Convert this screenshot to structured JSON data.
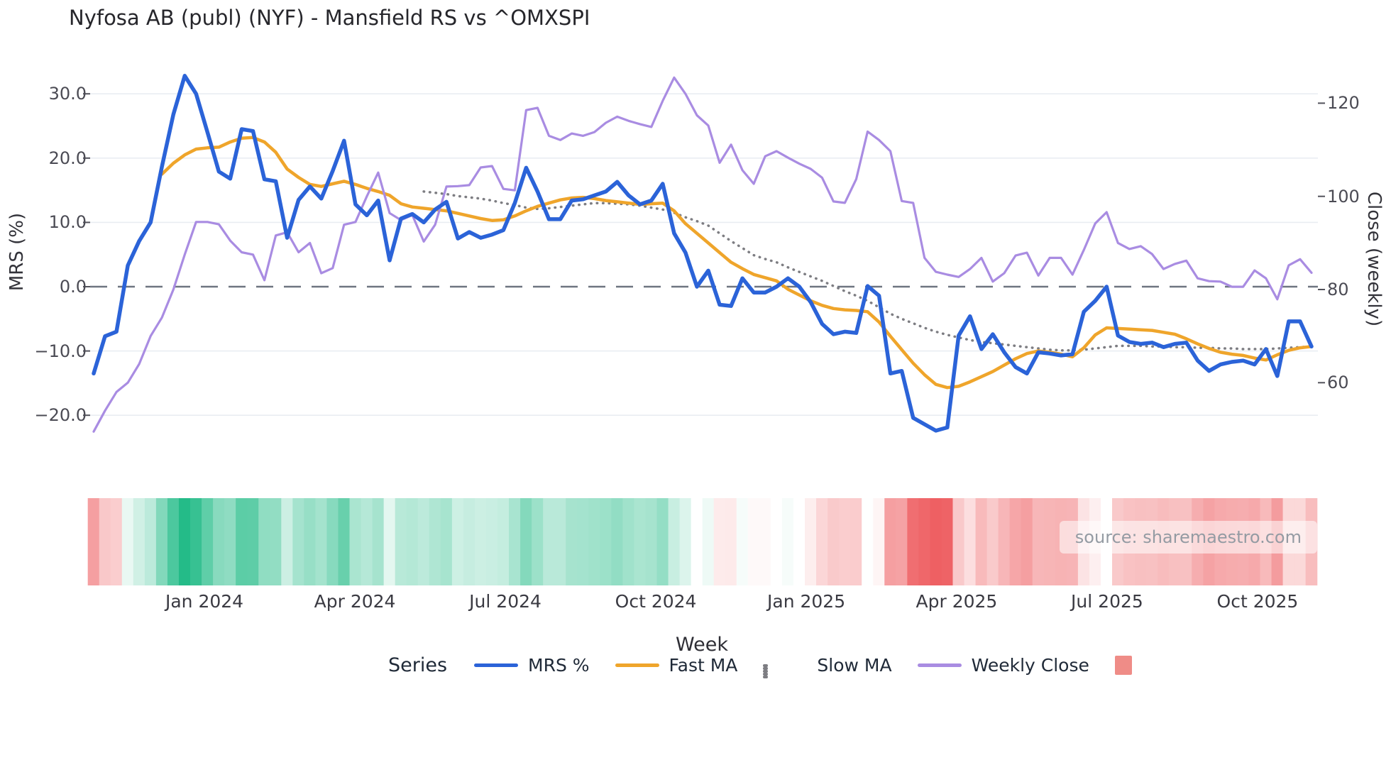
{
  "title": "Nyfosa AB (publ) (NYF) - Mansfield RS vs ^OMXSPI",
  "axes": {
    "left": {
      "title": "MRS (%)",
      "tick_values": [
        30,
        20,
        10,
        0,
        -10,
        -20
      ],
      "tick_labels": [
        "30.0",
        "20.0",
        "10.0",
        "0.0",
        "−10.0",
        "−20.0"
      ]
    },
    "right": {
      "title": "Close (weekly)",
      "tick_values": [
        120,
        100,
        80,
        60
      ],
      "tick_labels": [
        "120",
        "100",
        "80",
        "60"
      ]
    },
    "x": {
      "title": "Week"
    }
  },
  "legend": {
    "title": "Series",
    "items": [
      {
        "label": "MRS %",
        "color": "#2b63d8",
        "style": "line"
      },
      {
        "label": "Fast MA",
        "color": "#efa52b",
        "style": "line"
      },
      {
        "label": "Slow MA",
        "color": "#7d7d82",
        "style": "dots"
      },
      {
        "label": "Weekly Close",
        "color": "#a98ce2",
        "style": "line"
      },
      {
        "label": "",
        "color": "#ef8c87",
        "style": "square"
      }
    ]
  },
  "source_note": "source: sharemaestro.com",
  "colors": {
    "grid": "#e9edf2",
    "zero_line": "#6e7580",
    "strip_positive": "#23bb87",
    "strip_negative": "#ee5f62",
    "tick_mark": "#52525b"
  },
  "chart_data": {
    "type": "line",
    "title": "Nyfosa AB (publ) (NYF) - Mansfield RS vs ^OMXSPI",
    "xlabel": "Week",
    "ylabel_left": "MRS (%)",
    "ylabel_right": "Close (weekly)",
    "grid": true,
    "legend_position": "bottom",
    "left_ylim": [
      -25,
      35
    ],
    "right_ylim": [
      43,
      129
    ],
    "x_is_weekly": true,
    "x_ticks": [
      {
        "label": "Jan 2024",
        "week": 9.73
      },
      {
        "label": "Apr 2024",
        "week": 22.95
      },
      {
        "label": "Jul 2024",
        "week": 36.17
      },
      {
        "label": "Oct 2024",
        "week": 49.39
      },
      {
        "label": "Jan 2025",
        "week": 62.61
      },
      {
        "label": "Apr 2025",
        "week": 75.82
      },
      {
        "label": "Jul 2025",
        "week": 89.04
      },
      {
        "label": "Oct 2025",
        "week": 102.26
      }
    ],
    "zero_reference_line": 0,
    "series": [
      {
        "name": "MRS %",
        "axis": "left",
        "color": "#2b63d8",
        "style": "solid",
        "width": 5.5,
        "values": [
          -13.5,
          -7.7,
          -7.0,
          3.3,
          7.1,
          10.0,
          18.7,
          26.8,
          32.8,
          30.0,
          24.0,
          17.9,
          16.8,
          24.5,
          24.2,
          16.7,
          16.4,
          7.6,
          13.5,
          15.6,
          13.7,
          18.0,
          22.7,
          12.8,
          11.1,
          13.4,
          4.1,
          10.6,
          11.3,
          10.0,
          12.0,
          13.2,
          7.5,
          8.5,
          7.6,
          8.1,
          8.8,
          13.0,
          18.5,
          14.8,
          10.5,
          10.5,
          13.4,
          13.6,
          14.2,
          14.8,
          16.3,
          14.2,
          12.8,
          13.4,
          16.0,
          8.3,
          5.3,
          0.0,
          2.5,
          -2.8,
          -3.0,
          1.3,
          -0.9,
          -0.9,
          0.0,
          1.3,
          0.0,
          -2.4,
          -5.8,
          -7.4,
          -7.0,
          -7.2,
          0.1,
          -1.4,
          -13.5,
          -13.1,
          -20.4,
          -21.4,
          -22.4,
          -21.9,
          -7.6,
          -4.6,
          -9.7,
          -7.4,
          -10.2,
          -12.5,
          -13.5,
          -10.2,
          -10.4,
          -10.7,
          -10.5,
          -3.9,
          -2.2,
          0.0,
          -7.6,
          -8.6,
          -8.9,
          -8.7,
          -9.4,
          -8.9,
          -8.7,
          -11.5,
          -13.1,
          -12.1,
          -11.7,
          -11.5,
          -12.1,
          -9.7,
          -13.9,
          -5.4,
          -5.4,
          -9.3
        ]
      },
      {
        "name": "Fast MA",
        "axis": "left",
        "color": "#efa52b",
        "style": "solid",
        "width": 4.5,
        "values": [
          null,
          null,
          null,
          null,
          null,
          null,
          17.5,
          19.2,
          20.5,
          21.4,
          21.6,
          21.7,
          22.5,
          23.1,
          23.2,
          22.5,
          20.9,
          18.3,
          17.0,
          15.9,
          15.6,
          16.0,
          16.4,
          15.9,
          15.3,
          14.8,
          14.2,
          12.9,
          12.4,
          12.2,
          12.0,
          11.8,
          11.4,
          11.0,
          10.6,
          10.3,
          10.4,
          11.0,
          11.8,
          12.5,
          13.0,
          13.5,
          13.8,
          13.9,
          13.7,
          13.4,
          13.2,
          13.0,
          12.8,
          12.9,
          13.0,
          11.8,
          9.8,
          8.3,
          6.8,
          5.3,
          3.8,
          2.8,
          1.9,
          1.4,
          0.9,
          -0.4,
          -1.3,
          -2.2,
          -2.9,
          -3.4,
          -3.6,
          -3.7,
          -3.9,
          -5.5,
          -7.7,
          -9.8,
          -11.9,
          -13.7,
          -15.2,
          -15.7,
          -15.5,
          -14.8,
          -14.0,
          -13.2,
          -12.2,
          -11.2,
          -10.4,
          -10.0,
          -10.2,
          -10.5,
          -10.9,
          -9.5,
          -7.5,
          -6.4,
          -6.5,
          -6.6,
          -6.7,
          -6.8,
          -7.1,
          -7.4,
          -8.1,
          -8.9,
          -9.6,
          -10.2,
          -10.5,
          -10.7,
          -11.1,
          -11.4,
          -10.6,
          -9.9,
          -9.5,
          -9.3
        ]
      },
      {
        "name": "Slow MA",
        "axis": "left",
        "color": "#7d7d82",
        "style": "dotted",
        "width": 3.5,
        "values": [
          null,
          null,
          null,
          null,
          null,
          null,
          null,
          null,
          null,
          null,
          null,
          null,
          null,
          null,
          null,
          null,
          null,
          null,
          null,
          null,
          null,
          null,
          null,
          null,
          null,
          null,
          null,
          null,
          null,
          14.8,
          14.6,
          14.4,
          14.1,
          13.9,
          13.7,
          13.4,
          13.0,
          12.7,
          12.3,
          12.1,
          12.2,
          12.4,
          12.6,
          12.8,
          13.0,
          13.0,
          12.9,
          12.8,
          12.6,
          12.3,
          12.0,
          11.5,
          10.8,
          10.2,
          9.5,
          8.3,
          7.1,
          6.0,
          4.9,
          4.3,
          3.8,
          3.0,
          2.3,
          1.6,
          0.9,
          0.1,
          -0.7,
          -1.4,
          -2.2,
          -3.2,
          -4.2,
          -5.0,
          -5.7,
          -6.4,
          -7.0,
          -7.5,
          -7.9,
          -8.3,
          -8.6,
          -8.8,
          -9.0,
          -9.2,
          -9.4,
          -9.6,
          -9.8,
          -9.9,
          -9.9,
          -9.8,
          -9.6,
          -9.4,
          -9.2,
          -9.2,
          -9.2,
          -9.3,
          -9.3,
          -9.4,
          -9.4,
          -9.5,
          -9.5,
          -9.6,
          -9.6,
          -9.7,
          -9.7,
          -9.7,
          -9.6,
          -9.5,
          -9.4,
          -9.3
        ]
      },
      {
        "name": "Weekly Close",
        "axis": "right",
        "color": "#a98ce2",
        "style": "solid",
        "width": 3.2,
        "values": [
          49.5,
          54,
          58,
          60,
          64,
          70,
          74,
          80,
          87.5,
          94.5,
          94.5,
          94,
          90.5,
          88,
          87.5,
          82,
          91.6,
          92.3,
          88,
          90,
          83.5,
          84.6,
          93.9,
          94.5,
          100,
          105.1,
          96.4,
          94.9,
          96.0,
          90.3,
          93.9,
          102.1,
          102.2,
          102.4,
          106.2,
          106.5,
          101.6,
          101.3,
          118.5,
          119.0,
          113.0,
          112.1,
          113.5,
          113.0,
          113.8,
          115.8,
          117.1,
          116.2,
          115.5,
          114.9,
          120.5,
          125.5,
          122.0,
          117.4,
          115.2,
          107.2,
          111.1,
          105.6,
          102.7,
          108.6,
          109.7,
          108.3,
          107.0,
          105.9,
          104.0,
          98.9,
          98.6,
          103.7,
          113.9,
          112.1,
          109.7,
          99.0,
          98.6,
          86.8,
          83.8,
          83.2,
          82.7,
          84.4,
          86.8,
          81.7,
          83.5,
          87.3,
          87.9,
          83.0,
          86.8,
          86.8,
          83.2,
          88.5,
          94.2,
          96.6,
          90.0,
          88.7,
          89.3,
          87.6,
          84.4,
          85.5,
          86.2,
          82.4,
          81.8,
          81.7,
          80.6,
          80.6,
          84.1,
          82.4,
          77.9,
          85.2,
          86.5,
          83.6
        ]
      }
    ],
    "heatmap_strip": {
      "description": "weekly color band below chart derived from MRS % value",
      "source_series": "MRS %",
      "positive_color": "#23bb87",
      "negative_color": "#ee5f62",
      "positive_max": 33,
      "negative_max": -22.5
    }
  }
}
